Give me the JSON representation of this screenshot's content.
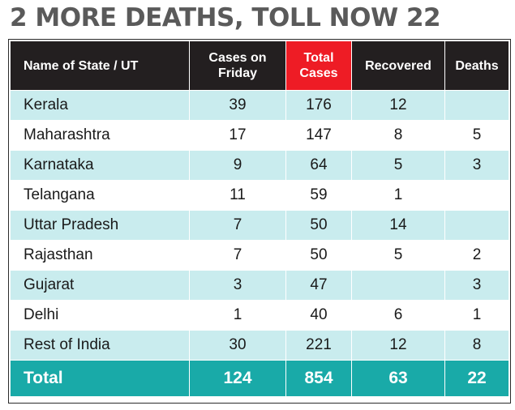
{
  "headline": "2 MORE DEATHS, TOLL NOW 22",
  "table": {
    "headers": {
      "state": "Name of State / UT",
      "friday": "Cases on Friday",
      "total": "Total Cases",
      "recovered": "Recovered",
      "deaths": "Deaths"
    },
    "rows": [
      {
        "state": "Kerala",
        "friday": "39",
        "total": "176",
        "recovered": "12",
        "deaths": ""
      },
      {
        "state": "Maharashtra",
        "friday": "17",
        "total": "147",
        "recovered": "8",
        "deaths": "5"
      },
      {
        "state": "Karnataka",
        "friday": "9",
        "total": "64",
        "recovered": "5",
        "deaths": "3"
      },
      {
        "state": "Telangana",
        "friday": "11",
        "total": "59",
        "recovered": "1",
        "deaths": ""
      },
      {
        "state": "Uttar Pradesh",
        "friday": "7",
        "total": "50",
        "recovered": "14",
        "deaths": ""
      },
      {
        "state": "Rajasthan",
        "friday": "7",
        "total": "50",
        "recovered": "5",
        "deaths": "2"
      },
      {
        "state": "Gujarat",
        "friday": "3",
        "total": "47",
        "recovered": "",
        "deaths": "3"
      },
      {
        "state": "Delhi",
        "friday": "1",
        "total": "40",
        "recovered": "6",
        "deaths": "1"
      },
      {
        "state": "Rest of India",
        "friday": "30",
        "total": "221",
        "recovered": "12",
        "deaths": "8"
      }
    ],
    "totals": {
      "state": "Total",
      "friday": "124",
      "total": "854",
      "recovered": "63",
      "deaths": "22"
    }
  },
  "colors": {
    "header_bg": "#231f20",
    "highlight_header_bg": "#ee1c25",
    "row_tint": "#c9ecee",
    "total_row_bg": "#19aaa8",
    "headline_text": "#5a5a5a"
  }
}
